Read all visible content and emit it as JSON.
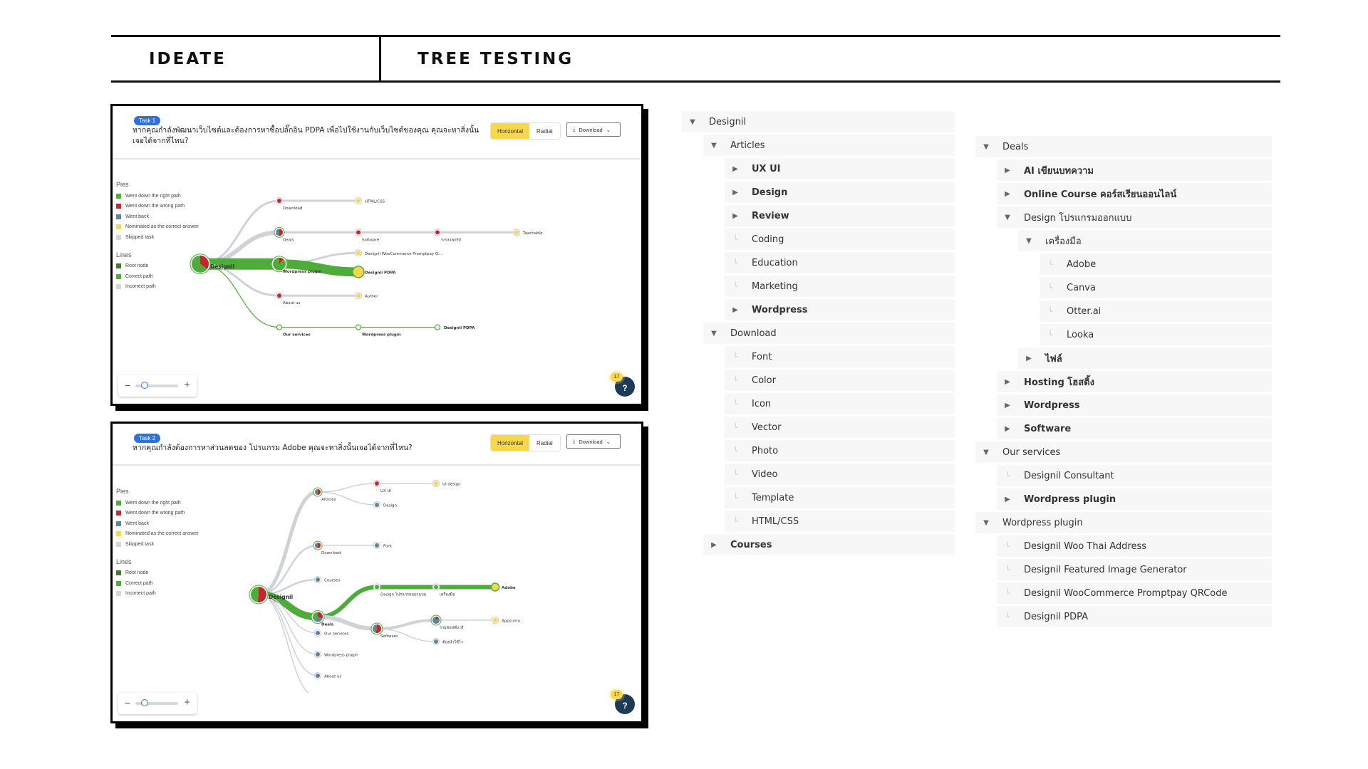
{
  "header": {
    "left_title": "IDEATE",
    "right_title": "TREE TESTING"
  },
  "legend": {
    "pies_title": "Pies",
    "pies": [
      {
        "label": "Went down the right path",
        "color": "#4eac3b"
      },
      {
        "label": "Went down the wrong path",
        "color": "#c4262e"
      },
      {
        "label": "Went back",
        "color": "#5b8599"
      },
      {
        "label": "Nominated as the correct answer",
        "color": "#f8d84a"
      },
      {
        "label": "Skipped task",
        "color": "#d3d6da"
      }
    ],
    "lines_title": "Lines",
    "lines": [
      {
        "label": "Root node",
        "color": "#3b7d2b"
      },
      {
        "label": "Correct path",
        "color": "#4eac3b"
      },
      {
        "label": "Incorrect path",
        "color": "#d3d6da"
      }
    ]
  },
  "cards": [
    {
      "task_badge": "Task 1",
      "question": "หากคุณกำลังพัฒนาเว็บไซต์และต้องการหาซื้อปลั๊กอิน PDPA เพื่อไปใช้งานกับเว็บไซต์ของคุณ คุณจะหาสิ่งนั้นเจอได้จากที่ไหน?",
      "view_options": [
        "Horizontal",
        "Radial"
      ],
      "selected_view": "Horizontal",
      "download_label": "Download",
      "help_count": "17",
      "help_label": "?",
      "zoom_minus": "−",
      "zoom_plus": "+",
      "zoom_level": 0.2
    },
    {
      "task_badge": "Task 2",
      "question": "หากคุณกำลังต้องการหาส่วนลดของ โปรแกรม Adobe คุณจะหาสิ่งนั้นเจอได้จากที่ไหน?",
      "view_options": [
        "Horizontal",
        "Radial"
      ],
      "selected_view": "Horizontal",
      "download_label": "Download",
      "help_count": "17",
      "help_label": "?",
      "zoom_minus": "−",
      "zoom_plus": "+",
      "zoom_level": 0.2
    }
  ],
  "pietree1": {
    "nodes": [
      {
        "id": "root",
        "label": "Designil",
        "col": 0,
        "row": 4,
        "kind": "pie",
        "r": 12,
        "bold": true,
        "pie": {
          "green": 0.65,
          "red": 0.35
        }
      },
      {
        "id": "download",
        "label": "Download",
        "col": 1,
        "row": 0,
        "kind": "dot",
        "color": "#c4262e"
      },
      {
        "id": "htmlcss",
        "label": "HTML/CSS",
        "col": 2,
        "row": 0,
        "kind": "dot",
        "color": "#f8d84a",
        "labelRight": true
      },
      {
        "id": "deals",
        "label": "Deals",
        "col": 1,
        "row": 2,
        "kind": "pie",
        "r": 5,
        "pie": {
          "blue": 0.5,
          "red": 0.5
        }
      },
      {
        "id": "software",
        "label": "Software",
        "col": 2,
        "row": 2,
        "kind": "dot",
        "color": "#c4262e"
      },
      {
        "id": "rabob",
        "label": "ระบบเพอร์ส",
        "col": 3,
        "row": 2,
        "kind": "dot",
        "color": "#c4262e"
      },
      {
        "id": "teachable",
        "label": "Teachable",
        "col": 4,
        "row": 2,
        "kind": "dot",
        "color": "#f8d84a",
        "labelRight": true
      },
      {
        "id": "wpplugin",
        "label": "Wordpress plugin",
        "col": 1,
        "row": 4,
        "kind": "pie",
        "r": 9,
        "bold": true,
        "pie": {
          "green": 0.88,
          "red": 0.12
        }
      },
      {
        "id": "promptpay",
        "label": "Designil WooCommerce Promptpay Q...",
        "col": 2,
        "row": 3.3,
        "kind": "dot",
        "color": "#f8d84a",
        "labelRight": true
      },
      {
        "id": "pdpa",
        "label": "Designil PDPA",
        "col": 2,
        "row": 4.5,
        "kind": "big",
        "color": "#f8d84a",
        "bold": true,
        "labelRight": true
      },
      {
        "id": "about",
        "label": "About us",
        "col": 1,
        "row": 6,
        "kind": "dot",
        "color": "#c4262e"
      },
      {
        "id": "author",
        "label": "Author",
        "col": 2,
        "row": 6,
        "kind": "dot",
        "color": "#f8d84a",
        "labelRight": true
      },
      {
        "id": "oursvc",
        "label": "Our services",
        "col": 1,
        "row": 8,
        "kind": "ring",
        "bold": true
      },
      {
        "id": "wpplugin2",
        "label": "Wordpress plugin",
        "col": 2,
        "row": 8,
        "kind": "ring",
        "bold": true
      },
      {
        "id": "pdpa2",
        "label": "Designil PDPA",
        "col": 3,
        "row": 8,
        "kind": "ring",
        "bold": true,
        "labelRight": true
      }
    ],
    "links": [
      {
        "from": "root",
        "to": "download",
        "type": "incorrect",
        "w": 3
      },
      {
        "from": "download",
        "to": "htmlcss",
        "type": "incorrect",
        "w": 3
      },
      {
        "from": "root",
        "to": "deals",
        "type": "incorrect",
        "w": 6
      },
      {
        "from": "deals",
        "to": "software",
        "type": "incorrect",
        "w": 3
      },
      {
        "from": "software",
        "to": "rabob",
        "type": "incorrect",
        "w": 3
      },
      {
        "from": "rabob",
        "to": "teachable",
        "type": "incorrect",
        "w": 3
      },
      {
        "from": "root",
        "to": "wpplugin",
        "type": "correct",
        "w": 16
      },
      {
        "from": "wpplugin",
        "to": "promptpay",
        "type": "incorrect",
        "w": 3
      },
      {
        "from": "wpplugin",
        "to": "pdpa",
        "type": "correct",
        "w": 13
      },
      {
        "from": "root",
        "to": "about",
        "type": "incorrect",
        "w": 3
      },
      {
        "from": "about",
        "to": "author",
        "type": "incorrect",
        "w": 3
      },
      {
        "from": "root",
        "to": "oursvc",
        "type": "correct",
        "w": 1.2
      },
      {
        "from": "oursvc",
        "to": "wpplugin2",
        "type": "correct",
        "w": 1.2
      },
      {
        "from": "wpplugin2",
        "to": "pdpa2",
        "type": "correct",
        "w": 1.2
      }
    ]
  },
  "pietree2": {
    "nodes": [
      {
        "id": "root",
        "label": "Designil",
        "col": 0,
        "row": 5.2,
        "kind": "pie",
        "r": 11,
        "bold": true,
        "pie": {
          "green": 0.48,
          "red": 0.52
        }
      },
      {
        "id": "articles",
        "label": "Articles",
        "col": 1,
        "row": 0.4,
        "kind": "pie",
        "r": 4,
        "pie": {
          "blue": 0.5,
          "red": 0.5
        }
      },
      {
        "id": "uxui",
        "label": "UX UI",
        "col": 2,
        "row": 0,
        "kind": "dot",
        "color": "#c4262e"
      },
      {
        "id": "uidesign",
        "label": "UI design",
        "col": 3,
        "row": 0,
        "kind": "dot",
        "color": "#f8d84a",
        "labelRight": true
      },
      {
        "id": "design",
        "label": "Design",
        "col": 2,
        "row": 1,
        "kind": "dot",
        "color": "#5b8599",
        "labelRight": true
      },
      {
        "id": "download",
        "label": "Download",
        "col": 1,
        "row": 2.9,
        "kind": "pie",
        "r": 4,
        "pie": {
          "blue": 0.5,
          "red": 0.5
        }
      },
      {
        "id": "font",
        "label": "Font",
        "col": 2,
        "row": 2.9,
        "kind": "dot",
        "color": "#5b8599",
        "labelRight": true
      },
      {
        "id": "courses",
        "label": "Courses",
        "col": 1,
        "row": 4.5,
        "kind": "dot",
        "color": "#5b8599",
        "labelRight": true
      },
      {
        "id": "deals",
        "label": "Deals",
        "col": 1,
        "row": 6.25,
        "kind": "pie",
        "r": 7,
        "bold": true,
        "pie": {
          "green": 0.4,
          "red": 0.3,
          "blue": 0.3
        }
      },
      {
        "id": "designprog",
        "label": "Design โปรแกรมออกแบบ",
        "col": 2,
        "row": 4.85,
        "kind": "dot",
        "color": "#4eac3b"
      },
      {
        "id": "tools",
        "label": "เครื่องมือ",
        "col": 3,
        "row": 4.85,
        "kind": "dot",
        "color": "#4eac3b"
      },
      {
        "id": "adobe",
        "label": "Adobe",
        "col": 4,
        "row": 4.85,
        "kind": "big2",
        "color": "#f8d84a",
        "bold": true,
        "labelRight": true
      },
      {
        "id": "software",
        "label": "Software",
        "col": 2,
        "row": 6.8,
        "kind": "pie",
        "r": 6,
        "pie": {
          "blue": 0.45,
          "red": 0.55
        }
      },
      {
        "id": "saas",
        "label": "รวมซอฟต์แวร์",
        "col": 3,
        "row": 6.4,
        "kind": "pie",
        "r": 5,
        "pie": {
          "blue": 0.85,
          "red": 0.15
        }
      },
      {
        "id": "appsumo",
        "label": "Appsumo",
        "col": 4,
        "row": 6.4,
        "kind": "dot",
        "color": "#f8d84a",
        "labelRight": true
      },
      {
        "id": "ebook",
        "label": "ต้องนำใช้ไว",
        "col": 3,
        "row": 7.4,
        "kind": "dot",
        "color": "#5b8599",
        "labelRight": true
      },
      {
        "id": "oursvc",
        "label": "Our services",
        "col": 1,
        "row": 7.0,
        "kind": "dot",
        "color": "#5b8599",
        "labelRight": true
      },
      {
        "id": "wpplugin",
        "label": "Wordpress plugin",
        "col": 1,
        "row": 8.0,
        "kind": "dot",
        "color": "#5b8599",
        "labelRight": true
      },
      {
        "id": "about",
        "label": "About us",
        "col": 1,
        "row": 9.0,
        "kind": "dot",
        "color": "#5b8599",
        "labelRight": true
      },
      {
        "id": "contact",
        "label": "Contact us",
        "col": 1,
        "row": 10.0,
        "kind": "dot",
        "color": "#5b8599",
        "labelRight": true
      }
    ],
    "links": [
      {
        "from": "root",
        "to": "articles",
        "type": "incorrect",
        "w": 5
      },
      {
        "from": "articles",
        "to": "uxui",
        "type": "incorrect",
        "w": 1.5
      },
      {
        "from": "uxui",
        "to": "uidesign",
        "type": "incorrect",
        "w": 1.5
      },
      {
        "from": "articles",
        "to": "design",
        "type": "incorrect",
        "w": 1.5
      },
      {
        "from": "root",
        "to": "download",
        "type": "incorrect",
        "w": 2.5
      },
      {
        "from": "download",
        "to": "font",
        "type": "incorrect",
        "w": 1.5
      },
      {
        "from": "root",
        "to": "courses",
        "type": "incorrect",
        "w": 2.5
      },
      {
        "from": "root",
        "to": "deals",
        "type": "correct",
        "w": 10
      },
      {
        "from": "deals",
        "to": "designprog",
        "type": "correct",
        "w": 6
      },
      {
        "from": "designprog",
        "to": "tools",
        "type": "correct",
        "w": 6
      },
      {
        "from": "tools",
        "to": "adobe",
        "type": "correct",
        "w": 6
      },
      {
        "from": "deals",
        "to": "software",
        "type": "incorrect",
        "w": 6
      },
      {
        "from": "software",
        "to": "saas",
        "type": "incorrect",
        "w": 4
      },
      {
        "from": "saas",
        "to": "appsumo",
        "type": "incorrect",
        "w": 1.5
      },
      {
        "from": "software",
        "to": "ebook",
        "type": "incorrect",
        "w": 1.5
      },
      {
        "from": "root",
        "to": "oursvc",
        "type": "incorrect",
        "w": 1.5
      },
      {
        "from": "root",
        "to": "wpplugin",
        "type": "incorrect",
        "w": 1.5
      },
      {
        "from": "root",
        "to": "about",
        "type": "incorrect",
        "w": 1.5
      },
      {
        "from": "root",
        "to": "contact",
        "type": "incorrect",
        "w": 1.5
      }
    ]
  },
  "tree": {
    "column1": [
      {
        "label": "Designil",
        "depth": 0,
        "icon": "caret-down",
        "bold": false
      },
      {
        "label": "Articles",
        "depth": 1,
        "icon": "caret-down",
        "bold": false
      },
      {
        "label": "UX UI",
        "depth": 2,
        "icon": "caret-right",
        "bold": true
      },
      {
        "label": "Design",
        "depth": 2,
        "icon": "caret-right",
        "bold": true
      },
      {
        "label": "Review",
        "depth": 2,
        "icon": "caret-right",
        "bold": true
      },
      {
        "label": "Coding",
        "depth": 2,
        "icon": "leaf",
        "bold": false
      },
      {
        "label": "Education",
        "depth": 2,
        "icon": "leaf",
        "bold": false
      },
      {
        "label": "Marketing",
        "depth": 2,
        "icon": "leaf",
        "bold": false
      },
      {
        "label": "Wordpress",
        "depth": 2,
        "icon": "caret-right",
        "bold": true
      },
      {
        "label": "Download",
        "depth": 1,
        "icon": "caret-down",
        "bold": false
      },
      {
        "label": "Font",
        "depth": 2,
        "icon": "leaf",
        "bold": false
      },
      {
        "label": "Color",
        "depth": 2,
        "icon": "leaf",
        "bold": false
      },
      {
        "label": "Icon",
        "depth": 2,
        "icon": "leaf",
        "bold": false
      },
      {
        "label": "Vector",
        "depth": 2,
        "icon": "leaf",
        "bold": false
      },
      {
        "label": "Photo",
        "depth": 2,
        "icon": "leaf",
        "bold": false
      },
      {
        "label": "Video",
        "depth": 2,
        "icon": "leaf",
        "bold": false
      },
      {
        "label": "Template",
        "depth": 2,
        "icon": "leaf",
        "bold": false
      },
      {
        "label": "HTML/CSS",
        "depth": 2,
        "icon": "leaf",
        "bold": false
      },
      {
        "label": "Courses",
        "depth": 1,
        "icon": "caret-right",
        "bold": true
      }
    ],
    "column2": [
      {
        "label": "Deals",
        "depth": 0,
        "icon": "caret-down",
        "bold": false
      },
      {
        "label": "AI เขียนบทความ",
        "depth": 1,
        "icon": "caret-right",
        "bold": true
      },
      {
        "label": "Online Course คอร์สเรียนออนไลน์",
        "depth": 1,
        "icon": "caret-right",
        "bold": true
      },
      {
        "label": "Design โปรแกรมออกแบบ",
        "depth": 1,
        "icon": "caret-down",
        "bold": false
      },
      {
        "label": "เครื่องมือ",
        "depth": 2,
        "icon": "caret-down",
        "bold": false
      },
      {
        "label": "Adobe",
        "depth": 3,
        "icon": "leaf",
        "bold": false
      },
      {
        "label": "Canva",
        "depth": 3,
        "icon": "leaf",
        "bold": false
      },
      {
        "label": "Otter.ai",
        "depth": 3,
        "icon": "leaf",
        "bold": false
      },
      {
        "label": "Looka",
        "depth": 3,
        "icon": "leaf",
        "bold": false
      },
      {
        "label": "ไฟล์",
        "depth": 2,
        "icon": "caret-right",
        "bold": true
      },
      {
        "label": "Hosting โฮสติ้ง",
        "depth": 1,
        "icon": "caret-right",
        "bold": true
      },
      {
        "label": "Wordpress",
        "depth": 1,
        "icon": "caret-right",
        "bold": true
      },
      {
        "label": "Software",
        "depth": 1,
        "icon": "caret-right",
        "bold": true
      },
      {
        "label": "Our services",
        "depth": 0,
        "icon": "caret-down",
        "bold": false
      },
      {
        "label": "Designil Consultant",
        "depth": 1,
        "icon": "leaf",
        "bold": false
      },
      {
        "label": "Wordpress plugin",
        "depth": 1,
        "icon": "caret-right",
        "bold": true
      },
      {
        "label": "Wordpress plugin",
        "depth": 0,
        "icon": "caret-down",
        "bold": false
      },
      {
        "label": "Designil Woo Thai Address",
        "depth": 1,
        "icon": "leaf",
        "bold": false
      },
      {
        "label": "Designil Featured Image Generator",
        "depth": 1,
        "icon": "leaf",
        "bold": false
      },
      {
        "label": "Designil WooCommerce Promptpay QRCode",
        "depth": 1,
        "icon": "leaf",
        "bold": false
      },
      {
        "label": "Designil PDPA",
        "depth": 1,
        "icon": "leaf",
        "bold": false
      }
    ]
  }
}
